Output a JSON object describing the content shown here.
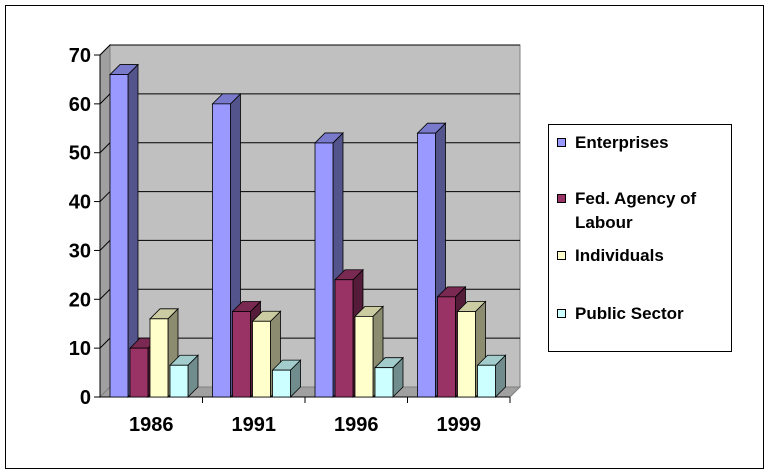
{
  "chart_data": {
    "type": "bar",
    "title": "",
    "xlabel": "",
    "ylabel": "",
    "categories": [
      "1986",
      "1991",
      "1996",
      "1999"
    ],
    "ylim": [
      0,
      70
    ],
    "y_ticks": [
      "0",
      "10",
      "20",
      "30",
      "40",
      "50",
      "60",
      "70"
    ],
    "grid": true,
    "three_d": true,
    "legend_position": "right",
    "series": [
      {
        "name": "Enterprises",
        "color": "#9999FF",
        "values": [
          66,
          60,
          52,
          54
        ]
      },
      {
        "name": "Fed. Agency of Labour",
        "color": "#993366",
        "values": [
          10,
          17.5,
          24,
          20.5
        ]
      },
      {
        "name": "Individuals",
        "color": "#FFFFCC",
        "values": [
          16,
          15.5,
          16.5,
          17.5
        ]
      },
      {
        "name": "Public Sector",
        "color": "#CCFFFF",
        "values": [
          6.5,
          5.5,
          6,
          6.5
        ]
      }
    ],
    "wall_color": "#C0C0C0"
  }
}
